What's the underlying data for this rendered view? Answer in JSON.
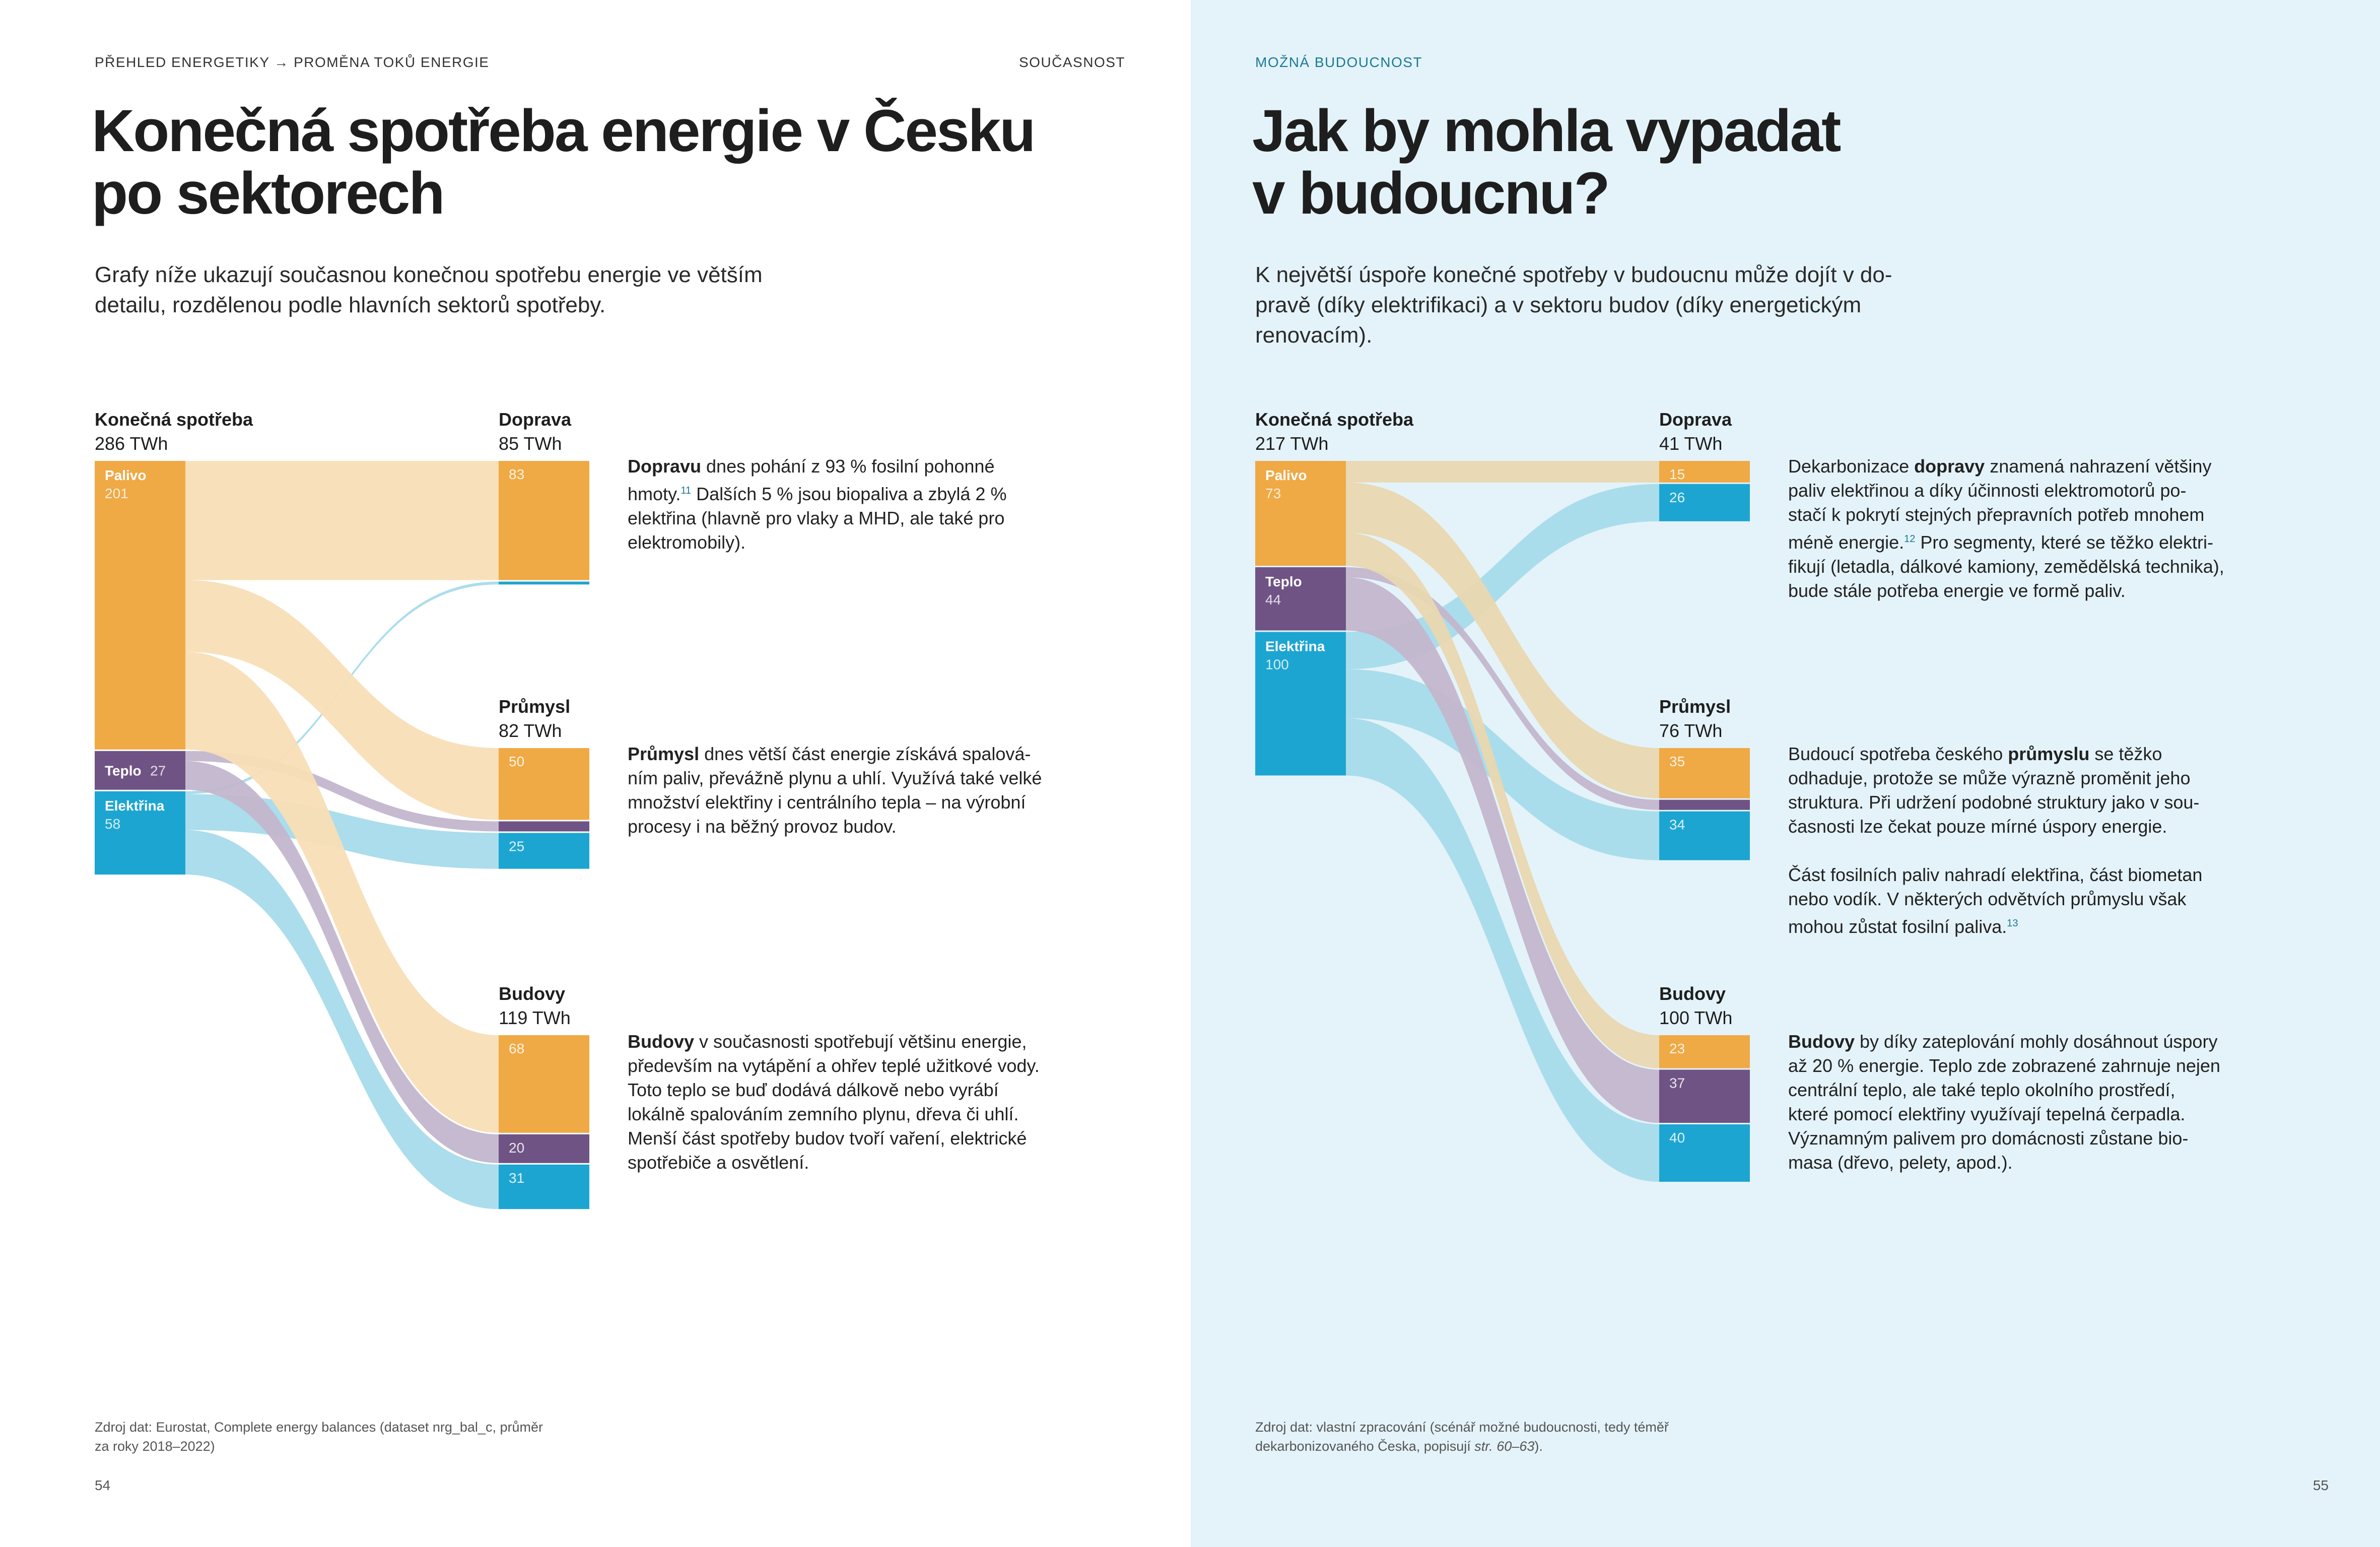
{
  "colors": {
    "fuel": "#efa945",
    "fuel_light": "#f8deb6",
    "fuel_light_future": "#e9d7b0",
    "heat": "#6f5385",
    "heat_light": "#c3b6cd",
    "elec": "#1da5d2",
    "elec_light": "#a7dbeb",
    "right_bg": "#e4f3f9"
  },
  "left": {
    "breadcrumb": "PŘEHLED ENERGETIKY → PROMĚNA TOKŮ ENERGIE",
    "section": "SOUČASNOST",
    "title": "Konečná spotřeba energie v Česku\npo sektorech",
    "intro": "Grafy níže ukazují současnou konečnou spotřebu energie ve větším\ndetailu, rozdělenou podle hlavních sektorů spotřeby.",
    "source": "Zdroj dat: Eurostat, Complete energy balances (dataset nrg_bal_c, průměr\nza roky 2018–2022)",
    "page_number": "54",
    "descriptions": {
      "transport": {
        "lead": "Dopravu",
        "rest": " dnes pohání z 93 % fosilní pohonné\nhmoty.",
        "sup": "11",
        "tail": " Dalších 5 % jsou biopaliva a zbylá 2 %\nelektřina (hlavně pro vlaky a MHD, ale také pro\nelektromobily)."
      },
      "industry": {
        "lead": "Průmysl",
        "rest": " dnes větší část energie získává spalová-\nním paliv, převážně plynu a uhlí. Využívá také velké\nmnožství elektřiny i centrálního tepla – na výrobní\nprocesy i na běžný provoz budov."
      },
      "buildings": {
        "lead": "Budovy",
        "rest": " v současnosti spotřebují většinu energie,\npředevším na vytápění a ohřev teplé užitkové vody.\nToto teplo se buď dodává dálkově nebo vyrábí\nlokálně spalováním zemního plynu, dřeva či uhlí.\nMenší část spotřeby budov tvoří vaření, elektrické\nspotřebiče a osvětlení."
      }
    }
  },
  "right": {
    "section": "MOŽNÁ BUDOUCNOST",
    "title": "Jak by mohla vypadat\nv budoucnu?",
    "intro": "K největší úspoře konečné spotřeby v budoucnu může dojít v do-\npravě (díky elektrifikaci) a v sektoru budov (díky energetickým\nrenovacím).",
    "source_a": "Zdroj dat: vlastní zpracování (scénář možné budoucnosti, tedy téměř\ndekarbonizovaného Česka, popisují ",
    "source_b": "str. 60–63",
    "source_c": ").",
    "page_number": "55",
    "descriptions": {
      "transport": {
        "pre": "Dekarbonizace ",
        "lead": "dopravy",
        "rest": " znamená nahrazení většiny\npaliv elektřinou a díky účinnosti elektromotorů po-\nstačí k pokrytí stejných přepravních potřeb mnohem\nméně energie.",
        "sup": "12",
        "tail": " Pro segmenty, které se těžko elektri-\nfikují (letadla, dálkové kamiony, zemědělská technika),\nbude stále potřeba energie ve formě paliv."
      },
      "industry": {
        "pre": "Budoucí spotřeba českého ",
        "lead": "průmyslu",
        "rest": " se těžko\nodhaduje, protože se může výrazně proměnit jeho\nstruktura. Při udržení podobné struktury jako v sou-\nčasnosti lze čekat pouze mírné úspory energie.\n\nČást fosilních paliv nahradí elektřina, část biometan\nnebo vodík. V některých odvětvích průmyslu však\nmohou zůstat fosilní paliva.",
        "sup": "13"
      },
      "buildings": {
        "lead": "Budovy",
        "rest": " by díky zateplování mohly dosáhnout úspory\naž 20 % energie. Teplo zde zobrazené zahrnuje nejen\ncentrální teplo, ale také teplo okolního prostředí,\nkteré pomocí elektřiny využívají tepelná čerpadla.\nVýznamným palivem pro domácnosti zůstane bio-\nmasa (dřevo, pelety, apod.)."
      }
    }
  },
  "chart_data": [
    {
      "type": "sankey",
      "title": "Současnost",
      "unit": "TWh",
      "source": {
        "name": "Konečná spotřeba",
        "total": 286,
        "label": "286 TWh"
      },
      "carriers": [
        {
          "key": "fuel",
          "name": "Palivo",
          "value": 201
        },
        {
          "key": "heat",
          "name": "Teplo",
          "value": 27
        },
        {
          "key": "elec",
          "name": "Elektřina",
          "value": 58
        }
      ],
      "sectors": [
        {
          "key": "transport",
          "name": "Doprava",
          "total": 85,
          "label": "85 TWh",
          "parts": {
            "fuel": 83,
            "heat": 0,
            "elec": 2
          },
          "labels": {
            "fuel": "83"
          }
        },
        {
          "key": "industry",
          "name": "Průmysl",
          "total": 82,
          "label": "82 TWh",
          "parts": {
            "fuel": 50,
            "heat": 7,
            "elec": 25
          },
          "labels": {
            "fuel": "50",
            "elec": "25"
          }
        },
        {
          "key": "buildings",
          "name": "Budovy",
          "total": 119,
          "label": "119 TWh",
          "parts": {
            "fuel": 68,
            "heat": 20,
            "elec": 31
          },
          "labels": {
            "fuel": "68",
            "heat": "20",
            "elec": "31"
          }
        }
      ]
    },
    {
      "type": "sankey",
      "title": "Možná budoucnost",
      "unit": "TWh",
      "source": {
        "name": "Konečná spotřeba",
        "total": 217,
        "label": "217 TWh"
      },
      "carriers": [
        {
          "key": "fuel",
          "name": "Palivo",
          "value": 73
        },
        {
          "key": "heat",
          "name": "Teplo",
          "value": 44
        },
        {
          "key": "elec",
          "name": "Elektřina",
          "value": 100
        }
      ],
      "sectors": [
        {
          "key": "transport",
          "name": "Doprava",
          "total": 41,
          "label": "41 TWh",
          "parts": {
            "fuel": 15,
            "heat": 0,
            "elec": 26
          },
          "labels": {
            "fuel": "15",
            "elec": "26"
          }
        },
        {
          "key": "industry",
          "name": "Průmysl",
          "total": 76,
          "label": "76 TWh",
          "parts": {
            "fuel": 35,
            "heat": 7,
            "elec": 34
          },
          "labels": {
            "fuel": "35",
            "elec": "34"
          }
        },
        {
          "key": "buildings",
          "name": "Budovy",
          "total": 100,
          "label": "100 TWh",
          "parts": {
            "fuel": 23,
            "heat": 37,
            "elec": 40
          },
          "labels": {
            "fuel": "23",
            "heat": "37",
            "elec": "40"
          }
        }
      ]
    }
  ]
}
